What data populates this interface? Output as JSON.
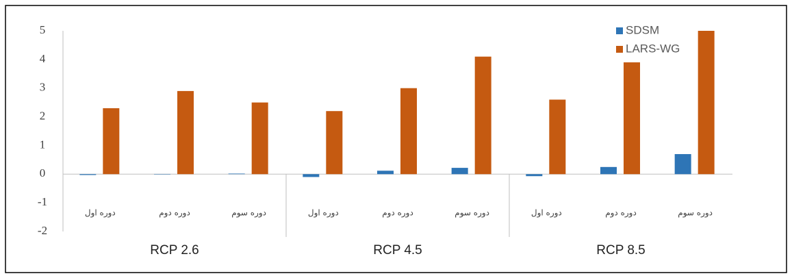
{
  "chart_data": {
    "type": "bar",
    "categories": [
      "دوره اول",
      "دوره دوم",
      "دوره سوم",
      "دوره اول",
      "دوره دوم",
      "دوره سوم",
      "دوره اول",
      "دوره دوم",
      "دوره سوم"
    ],
    "groups": [
      "RCP 2.6",
      "RCP 4.5",
      "RCP 8.5"
    ],
    "series": [
      {
        "name": "SDSM",
        "color": "#2e75b6",
        "values": [
          -0.03,
          0,
          0.02,
          -0.1,
          0.12,
          0.22,
          -0.07,
          0.25,
          0.7
        ]
      },
      {
        "name": "LARS-WG",
        "color": "#c55a11",
        "values": [
          2.3,
          2.9,
          2.5,
          2.2,
          3.0,
          4.1,
          2.6,
          3.9,
          5.0
        ]
      }
    ],
    "ylim": [
      -2,
      5
    ],
    "yticks": [
      -2,
      -1,
      0,
      1,
      2,
      3,
      4,
      5
    ],
    "legend": "top-right"
  }
}
